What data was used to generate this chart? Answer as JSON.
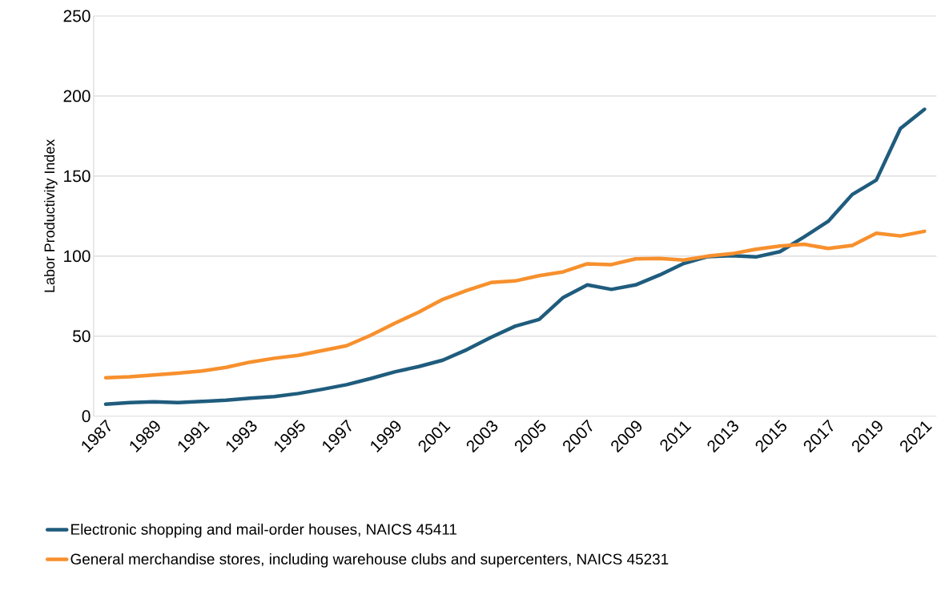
{
  "chart_data": {
    "type": "line",
    "ylabel": "Labor Productivity Index",
    "x": [
      1987,
      1988,
      1989,
      1990,
      1991,
      1992,
      1993,
      1994,
      1995,
      1996,
      1997,
      1998,
      1999,
      2000,
      2001,
      2002,
      2003,
      2004,
      2005,
      2006,
      2007,
      2008,
      2009,
      2010,
      2011,
      2012,
      2013,
      2014,
      2015,
      2016,
      2017,
      2018,
      2019,
      2020,
      2021
    ],
    "series": [
      {
        "name": "Electronic shopping and mail-order houses, NAICS 45411",
        "color": "#1f5c7d",
        "values": [
          7.5,
          8.5,
          9,
          8.5,
          9.2,
          10,
          11.2,
          12.3,
          14.2,
          16.8,
          19.7,
          23.5,
          27.7,
          31,
          35,
          41.6,
          49.3,
          56.2,
          60.5,
          74.2,
          82,
          79.2,
          82,
          88.2,
          95.4,
          99.7,
          100.3,
          99.5,
          102.8,
          112,
          121.7,
          138.5,
          147.5,
          179.7,
          191.7
        ]
      },
      {
        "name": "General merchandise stores, including warehouse clubs and supercenters, NAICS 45231",
        "color": "#f7902d",
        "values": [
          24,
          24.6,
          25.8,
          26.9,
          28.3,
          30.5,
          33.8,
          36.2,
          38,
          41,
          44,
          50.5,
          58,
          65,
          73,
          78.6,
          83.5,
          84.5,
          87.8,
          90.2,
          95.2,
          94.7,
          98.3,
          98.5,
          97.5,
          100,
          101.5,
          104.3,
          106.3,
          107.4,
          104.8,
          106.7,
          114.3,
          112.6,
          115.5
        ]
      }
    ],
    "xlim": [
      1986.5,
      2021.5
    ],
    "xticks": [
      1987,
      1989,
      1991,
      1993,
      1995,
      1997,
      1999,
      2001,
      2003,
      2005,
      2007,
      2009,
      2011,
      2013,
      2015,
      2017,
      2019,
      2021
    ],
    "ylim": [
      0,
      250
    ],
    "yticks": [
      0,
      50,
      100,
      150,
      200,
      250
    ],
    "grid": "y",
    "legend": "bottom",
    "marker": "none",
    "line_style": "solid"
  }
}
